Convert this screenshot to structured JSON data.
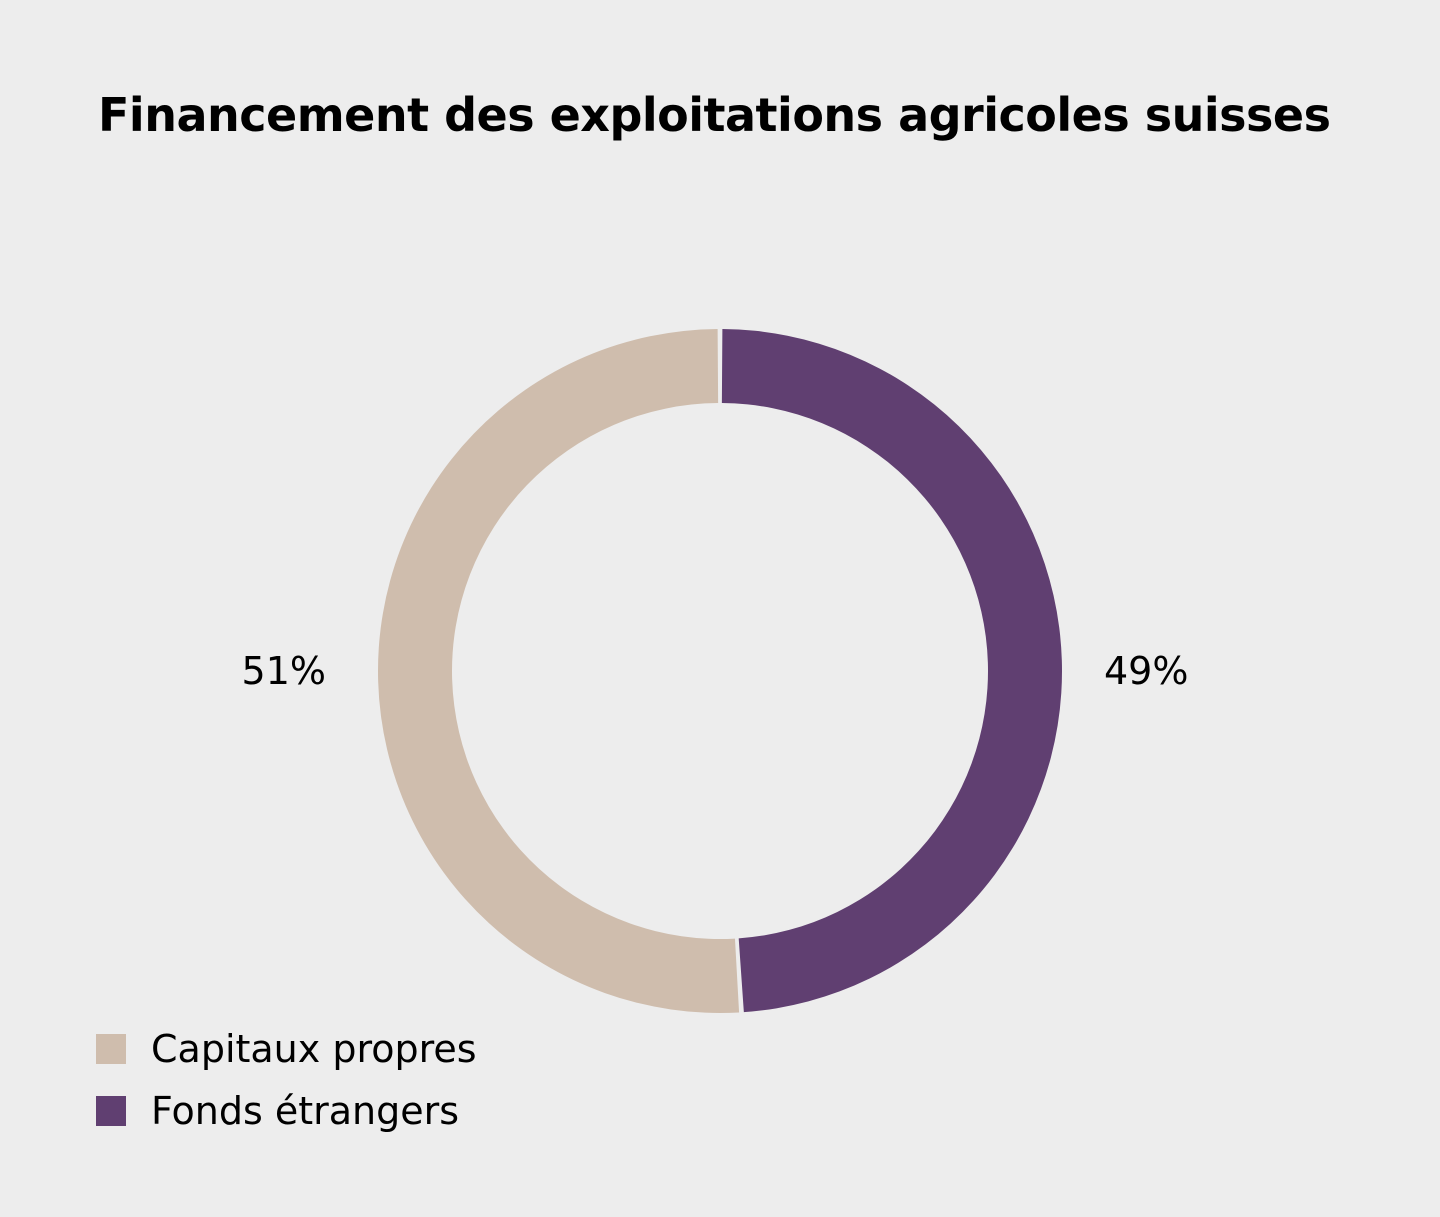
{
  "chart_data": {
    "type": "pie",
    "title": "Financement des exploitations agricoles suisses",
    "slices": [
      {
        "name": "Fonds étrangers",
        "value": 49,
        "label": "49%",
        "color": "#603f71"
      },
      {
        "name": "Capitaux propres",
        "value": 51,
        "label": "51%",
        "color": "#cfbdad"
      }
    ],
    "legend": {
      "placement": "bottom-left",
      "entries": [
        {
          "label": "Capitaux propres",
          "color": "#cfbdad"
        },
        {
          "label": "Fonds étrangers",
          "color": "#603f71"
        }
      ]
    },
    "style": "donut"
  },
  "colors": {
    "background": "#ededed",
    "text": "#000000"
  }
}
